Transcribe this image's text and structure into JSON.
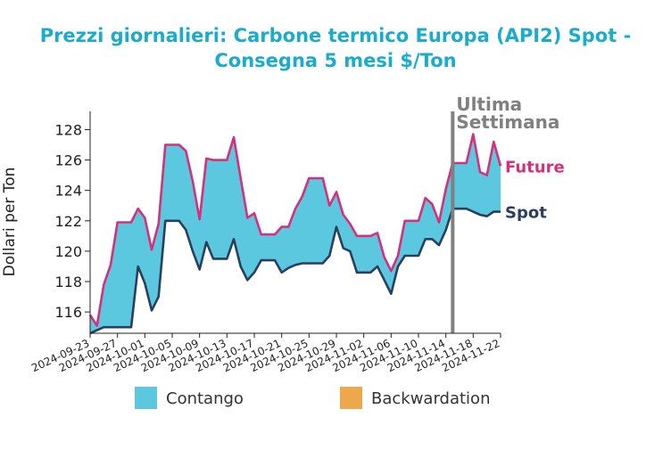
{
  "chart_data": {
    "type": "area",
    "title_line1": "Prezzi giornalieri: Carbone termico Europa (API2) Spot -",
    "title_line2": "Consegna 5 mesi $/Ton",
    "ylabel": "Dollari per Ton",
    "ylim": [
      114.6,
      129.2
    ],
    "yticks": [
      116,
      118,
      120,
      122,
      124,
      126,
      128
    ],
    "xlim": [
      "2024-09-23",
      "2024-11-22"
    ],
    "xticks": [
      "2024-09-23",
      "2024-09-27",
      "2024-10-01",
      "2024-10-05",
      "2024-10-09",
      "2024-10-13",
      "2024-10-17",
      "2024-10-21",
      "2024-10-25",
      "2024-10-29",
      "2024-11-02",
      "2024-11-06",
      "2024-11-10",
      "2024-11-14",
      "2024-11-18",
      "2024-11-22"
    ],
    "marker": {
      "date": "2024-11-15",
      "label_line1": "Ultima",
      "label_line2": "Settimana"
    },
    "series": [
      {
        "name": "Future",
        "color": "#d6307a",
        "dates": [
          "2024-09-23",
          "2024-09-24",
          "2024-09-25",
          "2024-09-26",
          "2024-09-27",
          "2024-09-28",
          "2024-09-29",
          "2024-09-30",
          "2024-10-01",
          "2024-10-02",
          "2024-10-03",
          "2024-10-04",
          "2024-10-05",
          "2024-10-06",
          "2024-10-07",
          "2024-10-08",
          "2024-10-09",
          "2024-10-10",
          "2024-10-11",
          "2024-10-12",
          "2024-10-13",
          "2024-10-14",
          "2024-10-15",
          "2024-10-16",
          "2024-10-17",
          "2024-10-18",
          "2024-10-19",
          "2024-10-20",
          "2024-10-21",
          "2024-10-22",
          "2024-10-23",
          "2024-10-24",
          "2024-10-25",
          "2024-10-26",
          "2024-10-27",
          "2024-10-28",
          "2024-10-29",
          "2024-10-30",
          "2024-10-31",
          "2024-11-01",
          "2024-11-02",
          "2024-11-03",
          "2024-11-04",
          "2024-11-05",
          "2024-11-06",
          "2024-11-07",
          "2024-11-08",
          "2024-11-09",
          "2024-11-10",
          "2024-11-11",
          "2024-11-12",
          "2024-11-13",
          "2024-11-14",
          "2024-11-15",
          "2024-11-16",
          "2024-11-17",
          "2024-11-18",
          "2024-11-19",
          "2024-11-20",
          "2024-11-21",
          "2024-11-22"
        ],
        "values": [
          115.8,
          115.1,
          117.8,
          119.1,
          121.9,
          121.9,
          121.9,
          122.8,
          122.2,
          120.1,
          121.8,
          127.0,
          127.0,
          127.0,
          126.6,
          124.6,
          122.1,
          126.1,
          126.0,
          126.0,
          126.0,
          127.5,
          124.8,
          122.2,
          122.5,
          121.1,
          121.1,
          121.1,
          121.6,
          121.6,
          122.8,
          123.6,
          124.8,
          124.8,
          124.8,
          123.0,
          123.9,
          122.4,
          121.8,
          121.0,
          121.0,
          121.0,
          121.2,
          119.6,
          118.7,
          119.7,
          122.0,
          122.0,
          122.0,
          123.5,
          123.1,
          121.9,
          124.1,
          125.8,
          125.8,
          125.8,
          127.7,
          125.2,
          125.0,
          127.2,
          125.6
        ]
      },
      {
        "name": "Spot",
        "color": "#2a3f5f",
        "dates": [
          "2024-09-23",
          "2024-09-24",
          "2024-09-25",
          "2024-09-26",
          "2024-09-27",
          "2024-09-28",
          "2024-09-29",
          "2024-09-30",
          "2024-10-01",
          "2024-10-02",
          "2024-10-03",
          "2024-10-04",
          "2024-10-05",
          "2024-10-06",
          "2024-10-07",
          "2024-10-08",
          "2024-10-09",
          "2024-10-10",
          "2024-10-11",
          "2024-10-12",
          "2024-10-13",
          "2024-10-14",
          "2024-10-15",
          "2024-10-16",
          "2024-10-17",
          "2024-10-18",
          "2024-10-19",
          "2024-10-20",
          "2024-10-21",
          "2024-10-22",
          "2024-10-23",
          "2024-10-24",
          "2024-10-25",
          "2024-10-26",
          "2024-10-27",
          "2024-10-28",
          "2024-10-29",
          "2024-10-30",
          "2024-10-31",
          "2024-11-01",
          "2024-11-02",
          "2024-11-03",
          "2024-11-04",
          "2024-11-05",
          "2024-11-06",
          "2024-11-07",
          "2024-11-08",
          "2024-11-09",
          "2024-11-10",
          "2024-11-11",
          "2024-11-12",
          "2024-11-13",
          "2024-11-14",
          "2024-11-15",
          "2024-11-16",
          "2024-11-17",
          "2024-11-18",
          "2024-11-19",
          "2024-11-20",
          "2024-11-21",
          "2024-11-22"
        ],
        "values": [
          114.6,
          114.8,
          115.0,
          115.0,
          115.0,
          115.0,
          115.0,
          119.0,
          117.9,
          116.1,
          117.0,
          122.0,
          122.0,
          122.0,
          121.4,
          120.0,
          118.8,
          120.6,
          119.5,
          119.5,
          119.5,
          120.8,
          119.0,
          118.1,
          118.6,
          119.4,
          119.4,
          119.4,
          118.6,
          118.9,
          119.1,
          119.2,
          119.2,
          119.2,
          119.2,
          119.7,
          121.6,
          120.2,
          120.0,
          118.6,
          118.6,
          118.6,
          119.0,
          118.1,
          117.2,
          119.0,
          119.7,
          119.7,
          119.7,
          120.8,
          120.8,
          120.4,
          121.4,
          122.8,
          122.8,
          122.8,
          122.6,
          122.4,
          122.3,
          122.6,
          122.6
        ]
      }
    ],
    "fills": {
      "contango_color": "#5bc8e0",
      "backwardation_color": "#eda84c"
    },
    "legend": [
      {
        "label": "Contango",
        "color": "#5bc8e0"
      },
      {
        "label": "Backwardation",
        "color": "#eda84c"
      }
    ],
    "legend_position": "bottom-center",
    "grid": false
  }
}
